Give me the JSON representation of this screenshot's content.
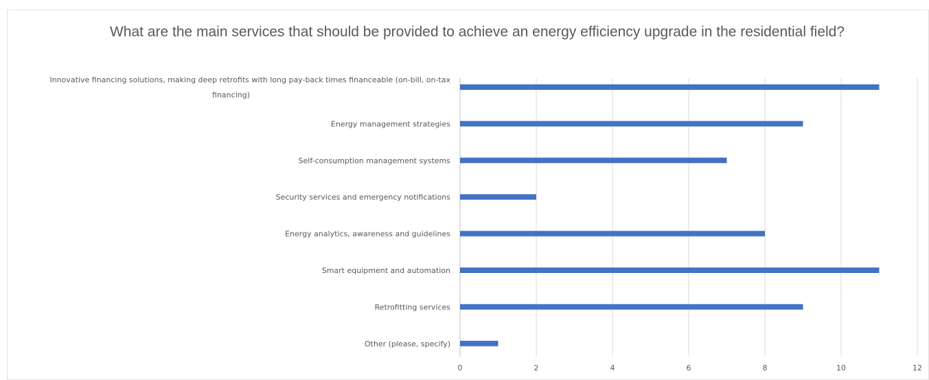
{
  "chart_data": {
    "type": "bar",
    "orientation": "horizontal",
    "title": "What are the main services that should be provided to achieve an energy efficiency upgrade in the residential field?",
    "categories": [
      "Innovative financing solutions, making deep retrofits with long pay-back times financeable (on-bill, on-tax financing)",
      "Energy management strategies",
      "Self-consumption management systems",
      "Security services and emergency notifications",
      "Energy analytics, awareness and guidelines",
      "Smart equipment and automation",
      "Retrofitting services",
      "Other (please, specify)"
    ],
    "values": [
      11,
      9,
      7,
      2,
      8,
      11,
      9,
      1
    ],
    "xlim": [
      0,
      12
    ],
    "xticks": [
      "0",
      "2",
      "4",
      "6",
      "8",
      "10",
      "12"
    ],
    "grid": true,
    "legend": "none",
    "bar_color": "#4472c4",
    "grid_color": "#d9d9d9",
    "text_color": "#595959"
  }
}
